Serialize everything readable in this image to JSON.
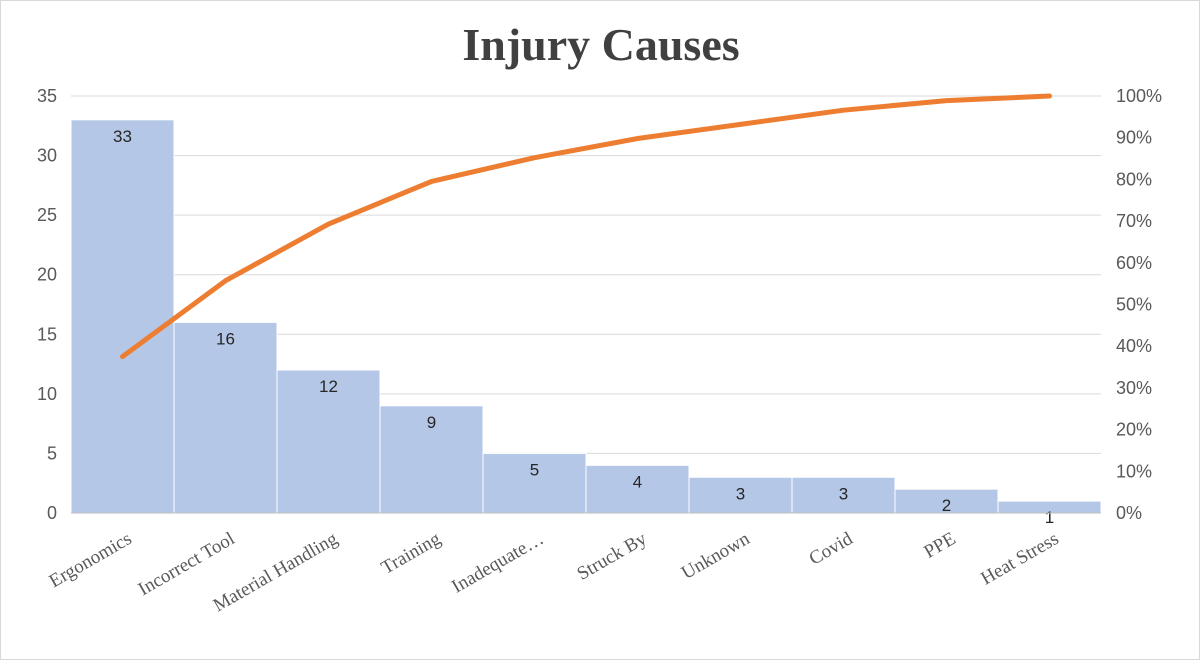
{
  "chart_data": {
    "type": "bar",
    "title": "Injury Causes",
    "categories": [
      "Ergonomics",
      "Incorrect Tool",
      "Material Handling",
      "Training",
      "Inadequate…",
      "Struck By",
      "Unknown",
      "Covid",
      "PPE",
      "Heat Stress"
    ],
    "series": [
      {
        "type": "bar",
        "values": [
          33,
          16,
          12,
          9,
          5,
          4,
          3,
          3,
          2,
          1
        ],
        "color": "#b4c7e7"
      },
      {
        "type": "line",
        "axis": "secondary",
        "values": [
          0.375,
          0.557,
          0.693,
          0.795,
          0.852,
          0.898,
          0.932,
          0.966,
          0.989,
          1.0
        ],
        "color": "#ed7d31"
      }
    ],
    "ylim": [
      0,
      35
    ],
    "y_ticks": [
      "0",
      "5",
      "10",
      "15",
      "20",
      "25",
      "30",
      "35"
    ],
    "y2lim": [
      0,
      1
    ],
    "y2_ticks": [
      "0%",
      "10%",
      "20%",
      "30%",
      "40%",
      "50%",
      "60%",
      "70%",
      "80%",
      "90%",
      "100%"
    ],
    "data_labels": [
      "33",
      "16",
      "12",
      "9",
      "5",
      "4",
      "3",
      "3",
      "2",
      "1"
    ],
    "grid": true,
    "legend": "none"
  }
}
